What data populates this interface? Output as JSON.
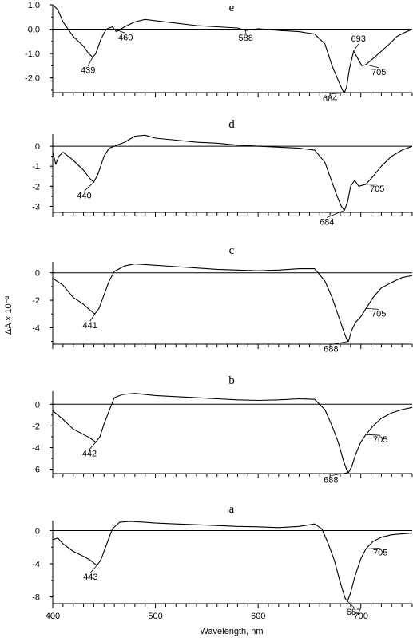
{
  "chart_data": {
    "type": "line",
    "xlabel": "Wavelength, nm",
    "ylabel": "ΔA × 10⁻³",
    "xlim": [
      400,
      750
    ],
    "x_ticks": [
      400,
      500,
      600,
      700
    ],
    "x_tick_labels": [
      "400",
      "500",
      "600",
      "700"
    ],
    "panels": [
      {
        "letter": "e",
        "ylim": [
          -2.6,
          1.0
        ],
        "y_ticks": [
          1.0,
          0.0,
          -1.0,
          -2.0
        ],
        "y_tick_labels": [
          "1.0",
          "0.0",
          "-1.0",
          "-2.0"
        ],
        "points": [
          [
            400,
            1.0
          ],
          [
            405,
            0.8
          ],
          [
            410,
            0.3
          ],
          [
            420,
            -0.3
          ],
          [
            430,
            -0.7
          ],
          [
            435,
            -1.0
          ],
          [
            439,
            -1.15
          ],
          [
            442,
            -1.0
          ],
          [
            447,
            -0.4
          ],
          [
            452,
            0.0
          ],
          [
            458,
            0.1
          ],
          [
            462,
            -0.1
          ],
          [
            470,
            0.1
          ],
          [
            480,
            0.3
          ],
          [
            490,
            0.4
          ],
          [
            500,
            0.35
          ],
          [
            520,
            0.25
          ],
          [
            540,
            0.15
          ],
          [
            560,
            0.1
          ],
          [
            580,
            0.05
          ],
          [
            588,
            -0.05
          ],
          [
            600,
            0.02
          ],
          [
            620,
            -0.05
          ],
          [
            640,
            -0.1
          ],
          [
            655,
            -0.2
          ],
          [
            665,
            -0.6
          ],
          [
            672,
            -1.5
          ],
          [
            678,
            -2.1
          ],
          [
            682,
            -2.5
          ],
          [
            684,
            -2.6
          ],
          [
            686,
            -2.4
          ],
          [
            689,
            -1.6
          ],
          [
            693,
            -0.9
          ],
          [
            697,
            -1.2
          ],
          [
            701,
            -1.5
          ],
          [
            705,
            -1.45
          ],
          [
            712,
            -1.2
          ],
          [
            720,
            -0.9
          ],
          [
            728,
            -0.6
          ],
          [
            735,
            -0.3
          ],
          [
            742,
            -0.15
          ],
          [
            750,
            0.0
          ]
        ],
        "annotations": [
          {
            "label": "439",
            "x": 439,
            "y": -1.15
          },
          {
            "label": "460",
            "x": 460,
            "y": 0.0
          },
          {
            "label": "588",
            "x": 588,
            "y": -0.05
          },
          {
            "label": "684",
            "x": 684,
            "y": -2.6
          },
          {
            "label": "693",
            "x": 693,
            "y": -0.9
          },
          {
            "label": "705",
            "x": 705,
            "y": -1.45
          }
        ]
      },
      {
        "letter": "d",
        "ylim": [
          -3.3,
          0.6
        ],
        "y_ticks": [
          0,
          -1,
          -2,
          -3
        ],
        "y_tick_labels": [
          "0",
          "-1",
          "-2",
          "-3"
        ],
        "points": [
          [
            400,
            -0.3
          ],
          [
            403,
            -0.9
          ],
          [
            406,
            -0.5
          ],
          [
            410,
            -0.3
          ],
          [
            420,
            -0.7
          ],
          [
            430,
            -1.2
          ],
          [
            436,
            -1.6
          ],
          [
            440,
            -1.8
          ],
          [
            444,
            -1.4
          ],
          [
            450,
            -0.5
          ],
          [
            455,
            -0.1
          ],
          [
            460,
            0.0
          ],
          [
            470,
            0.2
          ],
          [
            480,
            0.5
          ],
          [
            490,
            0.55
          ],
          [
            500,
            0.4
          ],
          [
            520,
            0.3
          ],
          [
            540,
            0.2
          ],
          [
            560,
            0.15
          ],
          [
            580,
            0.05
          ],
          [
            600,
            0.0
          ],
          [
            620,
            -0.05
          ],
          [
            640,
            -0.1
          ],
          [
            655,
            -0.2
          ],
          [
            665,
            -0.8
          ],
          [
            672,
            -1.8
          ],
          [
            677,
            -2.5
          ],
          [
            681,
            -3.0
          ],
          [
            684,
            -3.2
          ],
          [
            687,
            -2.8
          ],
          [
            690,
            -2.0
          ],
          [
            694,
            -1.7
          ],
          [
            698,
            -2.0
          ],
          [
            705,
            -1.9
          ],
          [
            712,
            -1.5
          ],
          [
            720,
            -1.0
          ],
          [
            730,
            -0.5
          ],
          [
            740,
            -0.2
          ],
          [
            750,
            0.0
          ]
        ],
        "annotations": [
          {
            "label": "440",
            "x": 440,
            "y": -1.8
          },
          {
            "label": "684",
            "x": 684,
            "y": -3.2
          },
          {
            "label": "705",
            "x": 705,
            "y": -1.9
          }
        ]
      },
      {
        "letter": "c",
        "ylim": [
          -5.2,
          0.8
        ],
        "y_ticks": [
          0,
          -2,
          -4
        ],
        "y_tick_labels": [
          "0",
          "-2",
          "-4"
        ],
        "points": [
          [
            400,
            -0.4
          ],
          [
            410,
            -0.9
          ],
          [
            420,
            -1.8
          ],
          [
            430,
            -2.3
          ],
          [
            436,
            -2.7
          ],
          [
            441,
            -3.0
          ],
          [
            445,
            -2.6
          ],
          [
            450,
            -1.6
          ],
          [
            455,
            -0.6
          ],
          [
            460,
            0.1
          ],
          [
            470,
            0.5
          ],
          [
            480,
            0.65
          ],
          [
            490,
            0.6
          ],
          [
            500,
            0.55
          ],
          [
            520,
            0.45
          ],
          [
            540,
            0.35
          ],
          [
            560,
            0.25
          ],
          [
            580,
            0.2
          ],
          [
            600,
            0.15
          ],
          [
            620,
            0.2
          ],
          [
            640,
            0.3
          ],
          [
            655,
            0.3
          ],
          [
            665,
            -0.6
          ],
          [
            672,
            -1.8
          ],
          [
            678,
            -3.1
          ],
          [
            683,
            -4.2
          ],
          [
            686,
            -4.8
          ],
          [
            688,
            -5.0
          ],
          [
            691,
            -4.2
          ],
          [
            695,
            -3.6
          ],
          [
            700,
            -3.2
          ],
          [
            705,
            -2.6
          ],
          [
            712,
            -1.8
          ],
          [
            720,
            -1.1
          ],
          [
            730,
            -0.7
          ],
          [
            740,
            -0.35
          ],
          [
            750,
            -0.2
          ]
        ],
        "annotations": [
          {
            "label": "441",
            "x": 441,
            "y": -3.0
          },
          {
            "label": "688",
            "x": 688,
            "y": -5.0
          },
          {
            "label": "705",
            "x": 705,
            "y": -2.6
          }
        ]
      },
      {
        "letter": "b",
        "ylim": [
          -6.4,
          1.2
        ],
        "y_ticks": [
          0,
          -2,
          -4,
          -6
        ],
        "y_tick_labels": [
          "0",
          "-2",
          "-4",
          "-6"
        ],
        "points": [
          [
            400,
            -0.6
          ],
          [
            410,
            -1.4
          ],
          [
            420,
            -2.3
          ],
          [
            430,
            -2.8
          ],
          [
            436,
            -3.1
          ],
          [
            442,
            -3.5
          ],
          [
            446,
            -3.0
          ],
          [
            450,
            -1.8
          ],
          [
            455,
            -0.6
          ],
          [
            460,
            0.6
          ],
          [
            468,
            0.9
          ],
          [
            480,
            1.0
          ],
          [
            490,
            0.9
          ],
          [
            500,
            0.8
          ],
          [
            520,
            0.7
          ],
          [
            540,
            0.6
          ],
          [
            560,
            0.5
          ],
          [
            580,
            0.4
          ],
          [
            600,
            0.35
          ],
          [
            620,
            0.4
          ],
          [
            640,
            0.5
          ],
          [
            655,
            0.45
          ],
          [
            665,
            -0.5
          ],
          [
            672,
            -2.0
          ],
          [
            678,
            -3.5
          ],
          [
            683,
            -5.2
          ],
          [
            686,
            -6.0
          ],
          [
            688,
            -6.3
          ],
          [
            691,
            -5.8
          ],
          [
            695,
            -4.6
          ],
          [
            700,
            -3.5
          ],
          [
            705,
            -2.8
          ],
          [
            712,
            -2.0
          ],
          [
            720,
            -1.3
          ],
          [
            730,
            -0.8
          ],
          [
            740,
            -0.5
          ],
          [
            750,
            -0.3
          ]
        ],
        "annotations": [
          {
            "label": "442",
            "x": 442,
            "y": -3.5
          },
          {
            "label": "688",
            "x": 688,
            "y": -6.3
          },
          {
            "label": "705",
            "x": 705,
            "y": -2.8
          }
        ]
      },
      {
        "letter": "a",
        "ylim": [
          -8.8,
          1.2
        ],
        "y_ticks": [
          0,
          -4,
          -8
        ],
        "y_tick_labels": [
          "0",
          "-4",
          "-8"
        ],
        "points": [
          [
            400,
            -1.1
          ],
          [
            405,
            -0.9
          ],
          [
            410,
            -1.6
          ],
          [
            420,
            -2.5
          ],
          [
            430,
            -3.1
          ],
          [
            437,
            -3.6
          ],
          [
            443,
            -4.2
          ],
          [
            447,
            -3.5
          ],
          [
            452,
            -1.8
          ],
          [
            458,
            0.2
          ],
          [
            465,
            1.0
          ],
          [
            475,
            1.1
          ],
          [
            490,
            1.0
          ],
          [
            500,
            0.9
          ],
          [
            520,
            0.8
          ],
          [
            540,
            0.7
          ],
          [
            560,
            0.6
          ],
          [
            580,
            0.5
          ],
          [
            600,
            0.45
          ],
          [
            620,
            0.35
          ],
          [
            640,
            0.5
          ],
          [
            655,
            0.8
          ],
          [
            662,
            0.2
          ],
          [
            668,
            -1.5
          ],
          [
            674,
            -3.5
          ],
          [
            679,
            -5.8
          ],
          [
            683,
            -7.5
          ],
          [
            685,
            -8.2
          ],
          [
            687,
            -8.5
          ],
          [
            690,
            -7.5
          ],
          [
            694,
            -5.6
          ],
          [
            700,
            -3.4
          ],
          [
            705,
            -2.2
          ],
          [
            712,
            -1.3
          ],
          [
            720,
            -0.8
          ],
          [
            730,
            -0.5
          ],
          [
            740,
            -0.4
          ],
          [
            750,
            -0.3
          ]
        ],
        "annotations": [
          {
            "label": "443",
            "x": 443,
            "y": -4.2
          },
          {
            "label": "687",
            "x": 687,
            "y": -8.5
          },
          {
            "label": "705",
            "x": 705,
            "y": -2.2
          }
        ]
      }
    ]
  }
}
